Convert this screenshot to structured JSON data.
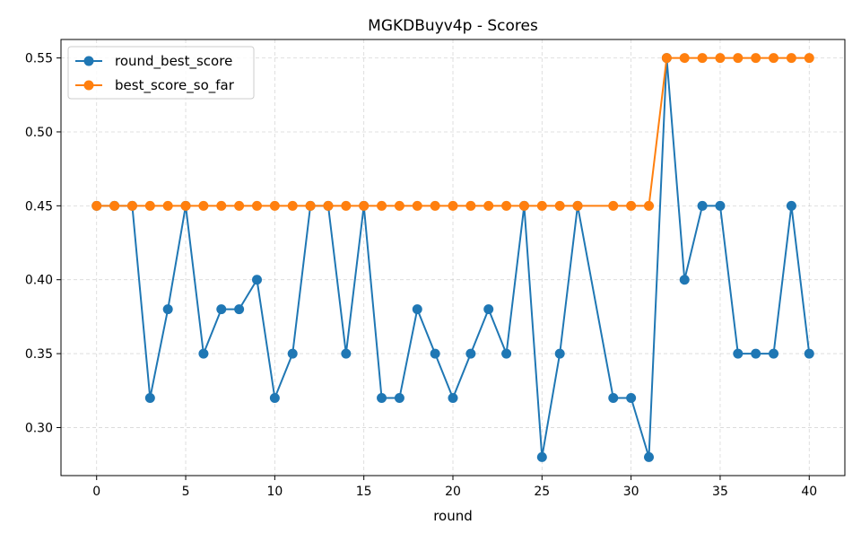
{
  "chart_data": {
    "type": "line",
    "title": "MGKDBuyv4p - Scores",
    "xlabel": "round",
    "ylabel": "",
    "xlim": [
      -2,
      42
    ],
    "ylim": [
      0.2675,
      0.5625
    ],
    "xticks": [
      0,
      5,
      10,
      15,
      20,
      25,
      30,
      35,
      40
    ],
    "yticks": [
      0.3,
      0.35,
      0.4,
      0.45,
      0.5,
      0.55
    ],
    "ytick_labels": [
      "0.30",
      "0.35",
      "0.40",
      "0.45",
      "0.50",
      "0.55"
    ],
    "grid": true,
    "legend_position": "top-left",
    "series": [
      {
        "name": "round_best_score",
        "color": "#1f77b4",
        "x": [
          0,
          1,
          2,
          3,
          4,
          5,
          6,
          7,
          8,
          9,
          10,
          11,
          12,
          13,
          14,
          15,
          16,
          17,
          18,
          19,
          20,
          21,
          22,
          23,
          24,
          25,
          26,
          27,
          29,
          30,
          31,
          32,
          33,
          34,
          35,
          36,
          37,
          38,
          39,
          40
        ],
        "y": [
          0.45,
          0.45,
          0.45,
          0.32,
          0.38,
          0.45,
          0.35,
          0.38,
          0.38,
          0.4,
          0.32,
          0.35,
          0.45,
          0.45,
          0.35,
          0.45,
          0.32,
          0.32,
          0.38,
          0.35,
          0.32,
          0.35,
          0.38,
          0.35,
          0.45,
          0.28,
          0.35,
          0.45,
          0.32,
          0.32,
          0.28,
          0.55,
          0.4,
          0.45,
          0.45,
          0.35,
          0.35,
          0.35,
          0.45,
          0.35
        ]
      },
      {
        "name": "best_score_so_far",
        "color": "#ff7f0e",
        "x": [
          0,
          1,
          2,
          3,
          4,
          5,
          6,
          7,
          8,
          9,
          10,
          11,
          12,
          13,
          14,
          15,
          16,
          17,
          18,
          19,
          20,
          21,
          22,
          23,
          24,
          25,
          26,
          27,
          29,
          30,
          31,
          32,
          33,
          34,
          35,
          36,
          37,
          38,
          39,
          40
        ],
        "y": [
          0.45,
          0.45,
          0.45,
          0.45,
          0.45,
          0.45,
          0.45,
          0.45,
          0.45,
          0.45,
          0.45,
          0.45,
          0.45,
          0.45,
          0.45,
          0.45,
          0.45,
          0.45,
          0.45,
          0.45,
          0.45,
          0.45,
          0.45,
          0.45,
          0.45,
          0.45,
          0.45,
          0.45,
          0.45,
          0.45,
          0.45,
          0.55,
          0.55,
          0.55,
          0.55,
          0.55,
          0.55,
          0.55,
          0.55,
          0.55
        ]
      }
    ]
  }
}
